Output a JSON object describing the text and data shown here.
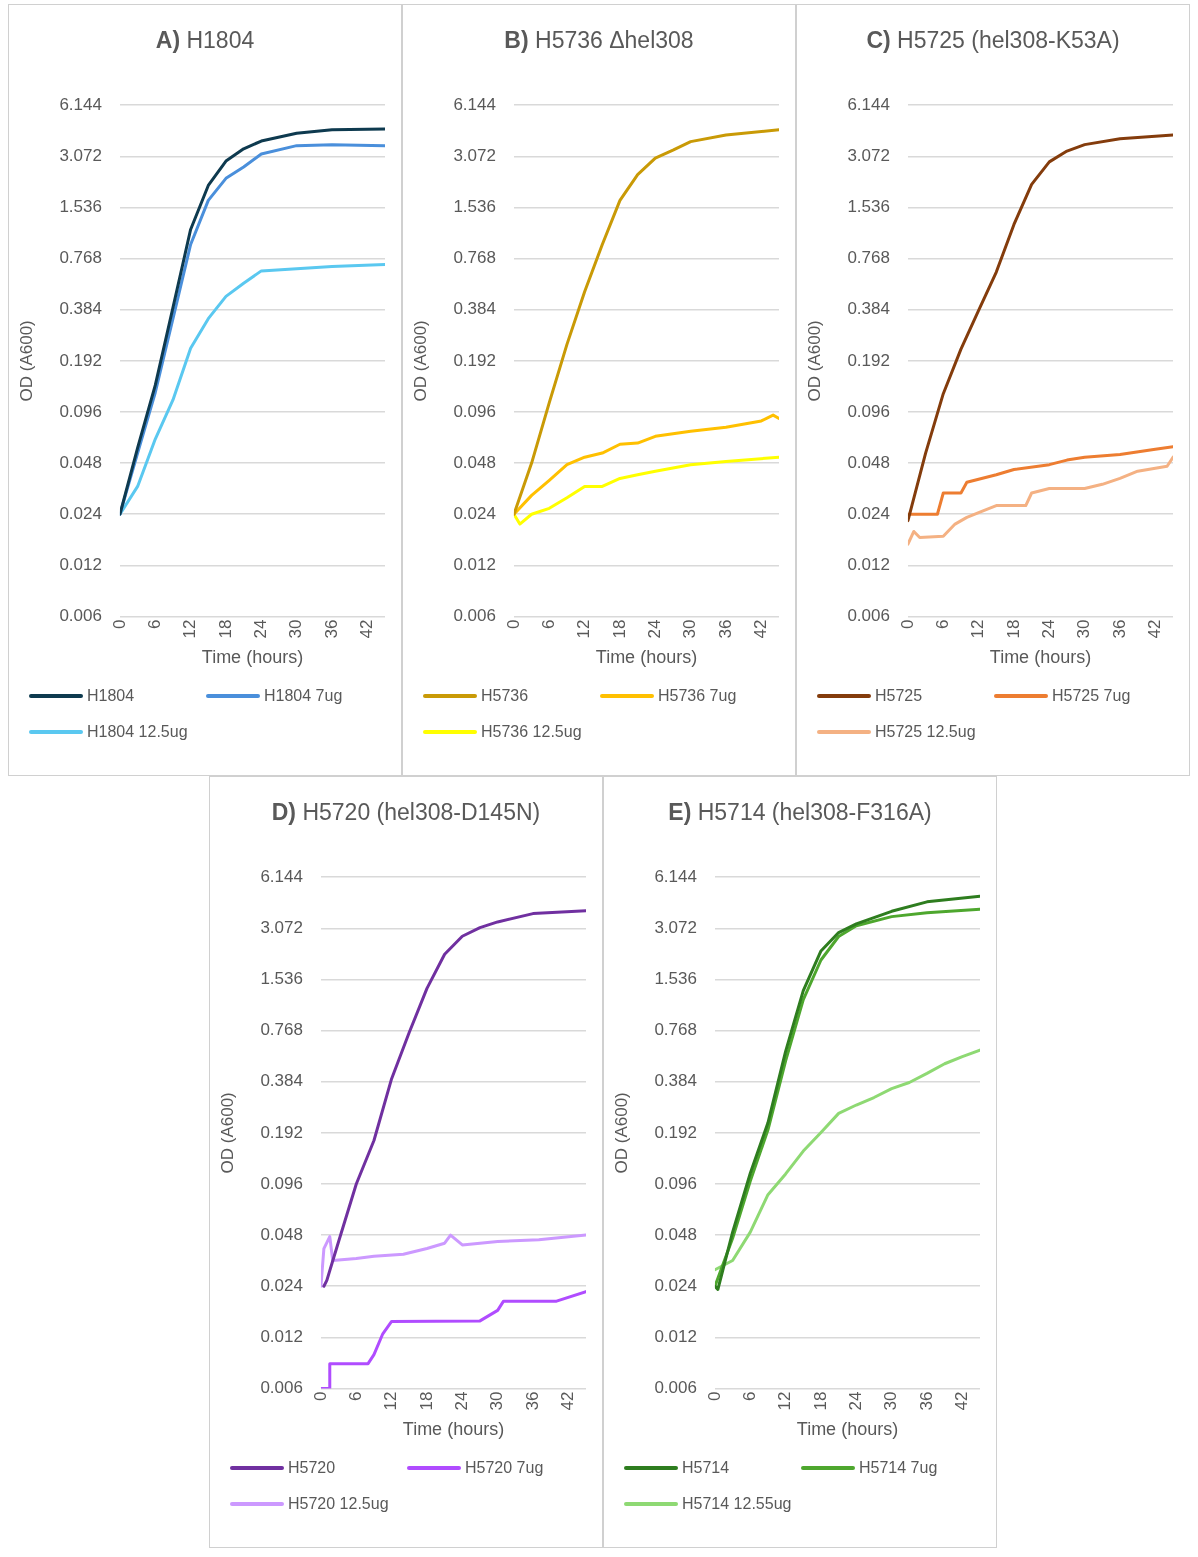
{
  "chart_data": [
    {
      "type": "line",
      "title": "A) H1804",
      "xlabel": "Time (hours)",
      "ylabel": "OD (A600)",
      "xlim": [
        0,
        45
      ],
      "xticks": [
        0,
        6,
        12,
        18,
        24,
        30,
        36,
        42
      ],
      "ylim": [
        0.006,
        6.144
      ],
      "yticks": [
        0.006,
        0.012,
        0.024,
        0.048,
        0.096,
        0.192,
        0.384,
        0.768,
        1.536,
        3.072,
        6.144
      ],
      "log": "y",
      "grid": "y",
      "legend": "bottom",
      "marker": "none",
      "line_style": "solid",
      "series": [
        {
          "name": "H1804",
          "color": "#0e3a4f",
          "x": [
            0,
            3,
            6,
            9,
            12,
            15,
            18,
            21,
            24,
            30,
            36,
            45
          ],
          "values": [
            0.024,
            0.059,
            0.138,
            0.395,
            1.14,
            2.07,
            2.88,
            3.4,
            3.78,
            4.2,
            4.4,
            4.45
          ]
        },
        {
          "name": "H1804 7ug",
          "color": "#4a8fdb",
          "x": [
            0,
            3,
            6,
            9,
            12,
            15,
            18,
            21,
            24,
            30,
            36,
            45
          ],
          "values": [
            0.024,
            0.055,
            0.125,
            0.34,
            0.93,
            1.69,
            2.28,
            2.66,
            3.17,
            3.55,
            3.6,
            3.55
          ]
        },
        {
          "name": "H1804 12.5ug",
          "color": "#5ac8f0",
          "x": [
            0,
            3,
            6,
            9,
            12,
            15,
            18,
            21,
            24,
            30,
            36,
            45
          ],
          "values": [
            0.024,
            0.035,
            0.0665,
            0.113,
            0.228,
            0.34,
            0.46,
            0.55,
            0.65,
            0.67,
            0.69,
            0.71
          ]
        }
      ]
    },
    {
      "type": "line",
      "title": "B) H5736 Δhel308",
      "xlabel": "Time (hours)",
      "ylabel": "OD (A600)",
      "xlim": [
        0,
        45
      ],
      "xticks": [
        0,
        6,
        12,
        18,
        24,
        30,
        36,
        42
      ],
      "ylim": [
        0.006,
        6.144
      ],
      "yticks": [
        0.006,
        0.012,
        0.024,
        0.048,
        0.096,
        0.192,
        0.384,
        0.768,
        1.536,
        3.072,
        6.144
      ],
      "log": "y",
      "grid": "y",
      "legend": "bottom",
      "marker": "none",
      "line_style": "solid",
      "series": [
        {
          "name": "H5736",
          "color": "#c99a06",
          "x": [
            0,
            3,
            6,
            9,
            12,
            15,
            18,
            21,
            24,
            27,
            30,
            36,
            45
          ],
          "values": [
            0.024,
            0.048,
            0.109,
            0.24,
            0.49,
            0.93,
            1.69,
            2.4,
            3.0,
            3.34,
            3.75,
            4.1,
            4.4
          ]
        },
        {
          "name": "H5736 7ug",
          "color": "#ffc000",
          "x": [
            0,
            3,
            6,
            9,
            12,
            15,
            18,
            21,
            24,
            30,
            36,
            42,
            44,
            45
          ],
          "values": [
            0.024,
            0.031,
            0.038,
            0.047,
            0.052,
            0.055,
            0.062,
            0.063,
            0.069,
            0.074,
            0.078,
            0.085,
            0.092,
            0.088
          ]
        },
        {
          "name": "H5736 12.5ug",
          "color": "#ffff00",
          "x": [
            0,
            1,
            3,
            6,
            9,
            12,
            15,
            18,
            21,
            24,
            30,
            36,
            45
          ],
          "values": [
            0.024,
            0.021,
            0.024,
            0.026,
            0.03,
            0.035,
            0.035,
            0.039,
            0.041,
            0.043,
            0.047,
            0.049,
            0.052
          ]
        }
      ]
    },
    {
      "type": "line",
      "title": "C) H5725 (hel308-K53A)",
      "xlabel": "Time (hours)",
      "ylabel": "OD (A600)",
      "xlim": [
        0,
        45
      ],
      "xticks": [
        0,
        6,
        12,
        18,
        24,
        30,
        36,
        42
      ],
      "ylim": [
        0.006,
        6.144
      ],
      "yticks": [
        0.006,
        0.012,
        0.024,
        0.048,
        0.096,
        0.192,
        0.384,
        0.768,
        1.536,
        3.072,
        6.144
      ],
      "log": "y",
      "grid": "y",
      "legend": "bottom",
      "marker": "none",
      "line_style": "solid",
      "series": [
        {
          "name": "H5725",
          "color": "#843c0c",
          "x": [
            0,
            3,
            6,
            9,
            12,
            15,
            18,
            21,
            24,
            27,
            30,
            36,
            45
          ],
          "values": [
            0.022,
            0.055,
            0.123,
            0.225,
            0.38,
            0.64,
            1.22,
            2.1,
            2.85,
            3.3,
            3.6,
            3.9,
            4.1
          ]
        },
        {
          "name": "H5725 7ug",
          "color": "#ed7d31",
          "x": [
            0,
            5,
            6,
            9,
            10,
            15,
            18,
            24,
            27,
            30,
            36,
            42,
            45
          ],
          "values": [
            0.024,
            0.024,
            0.032,
            0.032,
            0.037,
            0.041,
            0.044,
            0.047,
            0.05,
            0.052,
            0.054,
            0.058,
            0.06
          ]
        },
        {
          "name": "H5725 12.5ug",
          "color": "#f4b183",
          "x": [
            0,
            1,
            2,
            6,
            8,
            10,
            15,
            20,
            21,
            24,
            30,
            33,
            36,
            39,
            44,
            45
          ],
          "values": [
            0.016,
            0.019,
            0.0175,
            0.0178,
            0.021,
            0.023,
            0.027,
            0.027,
            0.032,
            0.034,
            0.034,
            0.036,
            0.039,
            0.043,
            0.046,
            0.052
          ]
        }
      ]
    },
    {
      "type": "line",
      "title": "D) H5720 (hel308-D145N)",
      "xlabel": "Time (hours)",
      "ylabel": "OD (A600)",
      "xlim": [
        0,
        45
      ],
      "xticks": [
        0,
        6,
        12,
        18,
        24,
        30,
        36,
        42
      ],
      "ylim": [
        0.006,
        6.144
      ],
      "yticks": [
        0.006,
        0.012,
        0.024,
        0.048,
        0.096,
        0.192,
        0.384,
        0.768,
        1.536,
        3.072,
        6.144
      ],
      "log": "y",
      "grid": "y",
      "legend": "bottom",
      "marker": "none",
      "line_style": "solid",
      "series": [
        {
          "name": "H5720",
          "color": "#7030a0",
          "x": [
            0.5,
            1,
            3,
            6,
            9,
            12,
            15,
            18,
            21,
            24,
            27,
            30,
            36,
            45
          ],
          "values": [
            0.024,
            0.026,
            0.044,
            0.096,
            0.173,
            0.4,
            0.75,
            1.36,
            2.16,
            2.76,
            3.1,
            3.35,
            3.75,
            3.9
          ]
        },
        {
          "name": "H5720 7ug",
          "color": "#b04cff",
          "x": [
            0,
            1.4,
            1.5,
            8,
            9,
            10.5,
            12,
            27,
            30,
            31,
            36,
            40,
            45
          ],
          "values": [
            0.006,
            0.006,
            0.0084,
            0.0084,
            0.0095,
            0.0126,
            0.0149,
            0.015,
            0.0173,
            0.0196,
            0.0196,
            0.0196,
            0.0223
          ]
        },
        {
          "name": "H5720 12.5ug",
          "color": "#cc99ff",
          "x": [
            0,
            0.5,
            1.5,
            2,
            6,
            9,
            14,
            18,
            21,
            22,
            24,
            30,
            37,
            45
          ],
          "values": [
            0.024,
            0.04,
            0.047,
            0.034,
            0.035,
            0.036,
            0.037,
            0.04,
            0.043,
            0.048,
            0.042,
            0.044,
            0.045,
            0.048
          ]
        }
      ]
    },
    {
      "type": "line",
      "title": "E) H5714 (hel308-F316A)",
      "xlabel": "Time (hours)",
      "ylabel": "OD (A600)",
      "xlim": [
        0,
        45
      ],
      "xticks": [
        0,
        6,
        12,
        18,
        24,
        30,
        36,
        42
      ],
      "ylim": [
        0.006,
        6.144
      ],
      "yticks": [
        0.006,
        0.012,
        0.024,
        0.048,
        0.096,
        0.192,
        0.384,
        0.768,
        1.536,
        3.072,
        6.144
      ],
      "log": "y",
      "grid": "y",
      "legend": "bottom",
      "marker": "none",
      "line_style": "solid",
      "series": [
        {
          "name": "H5714",
          "color": "#2e7d1f",
          "x": [
            0,
            0.5,
            3,
            6,
            9,
            12,
            15,
            18,
            21,
            24,
            30,
            36,
            45
          ],
          "values": [
            0.024,
            0.023,
            0.05,
            0.111,
            0.22,
            0.58,
            1.32,
            2.26,
            2.9,
            3.26,
            3.87,
            4.4,
            4.75
          ]
        },
        {
          "name": "H5714 7ug",
          "color": "#4ea72e",
          "x": [
            0,
            3,
            6,
            9,
            12,
            15,
            18,
            21,
            24,
            30,
            36,
            45
          ],
          "values": [
            0.024,
            0.046,
            0.1,
            0.2,
            0.51,
            1.17,
            2.0,
            2.75,
            3.18,
            3.6,
            3.8,
            3.98
          ]
        },
        {
          "name": "H5714 12.55ug",
          "color": "#8ed973",
          "x": [
            0,
            3,
            6,
            9,
            12,
            15,
            18,
            21,
            24,
            27,
            30,
            33,
            36,
            39,
            42,
            45
          ],
          "values": [
            0.03,
            0.034,
            0.05,
            0.083,
            0.11,
            0.15,
            0.193,
            0.25,
            0.28,
            0.31,
            0.35,
            0.38,
            0.43,
            0.49,
            0.54,
            0.59
          ]
        }
      ]
    }
  ]
}
